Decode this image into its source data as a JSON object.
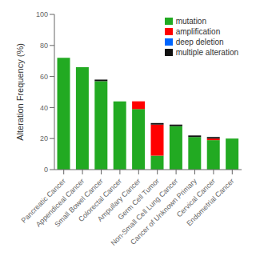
{
  "chart_data": {
    "type": "bar",
    "stacked": true,
    "categories": [
      "Pancreatic Cancer",
      "Appendiceal Cancer",
      "Small Bowel Cancer",
      "Colorectal Cancer",
      "Ampullary Cancer",
      "Germ Cell Tumor",
      "Non-Small Cell Lung Cancer",
      "Cancer of Unknown Primary",
      "Cervical Cancer",
      "Endometrial Cancer"
    ],
    "series": [
      {
        "name": "mutation",
        "color": "#22aa22",
        "values": [
          72,
          66,
          57,
          44,
          39,
          9,
          28,
          21,
          19,
          20
        ]
      },
      {
        "name": "amplification",
        "color": "#ff0000",
        "values": [
          0,
          0,
          0,
          0,
          5,
          20,
          0,
          0,
          1,
          0
        ]
      },
      {
        "name": "deep deletion",
        "color": "#0066ff",
        "values": [
          0,
          0,
          0,
          0,
          0,
          0,
          0,
          0,
          0,
          0
        ]
      },
      {
        "name": "multiple alteration",
        "color": "#111111",
        "values": [
          0,
          0,
          1,
          0,
          0,
          1,
          1,
          1,
          1,
          0
        ]
      }
    ],
    "ylabel": "Alteration Frequency (%)",
    "ylim": [
      0,
      100
    ],
    "yticks": [
      0,
      20,
      40,
      60,
      80,
      100
    ],
    "legend": "upper right",
    "grid": false
  }
}
